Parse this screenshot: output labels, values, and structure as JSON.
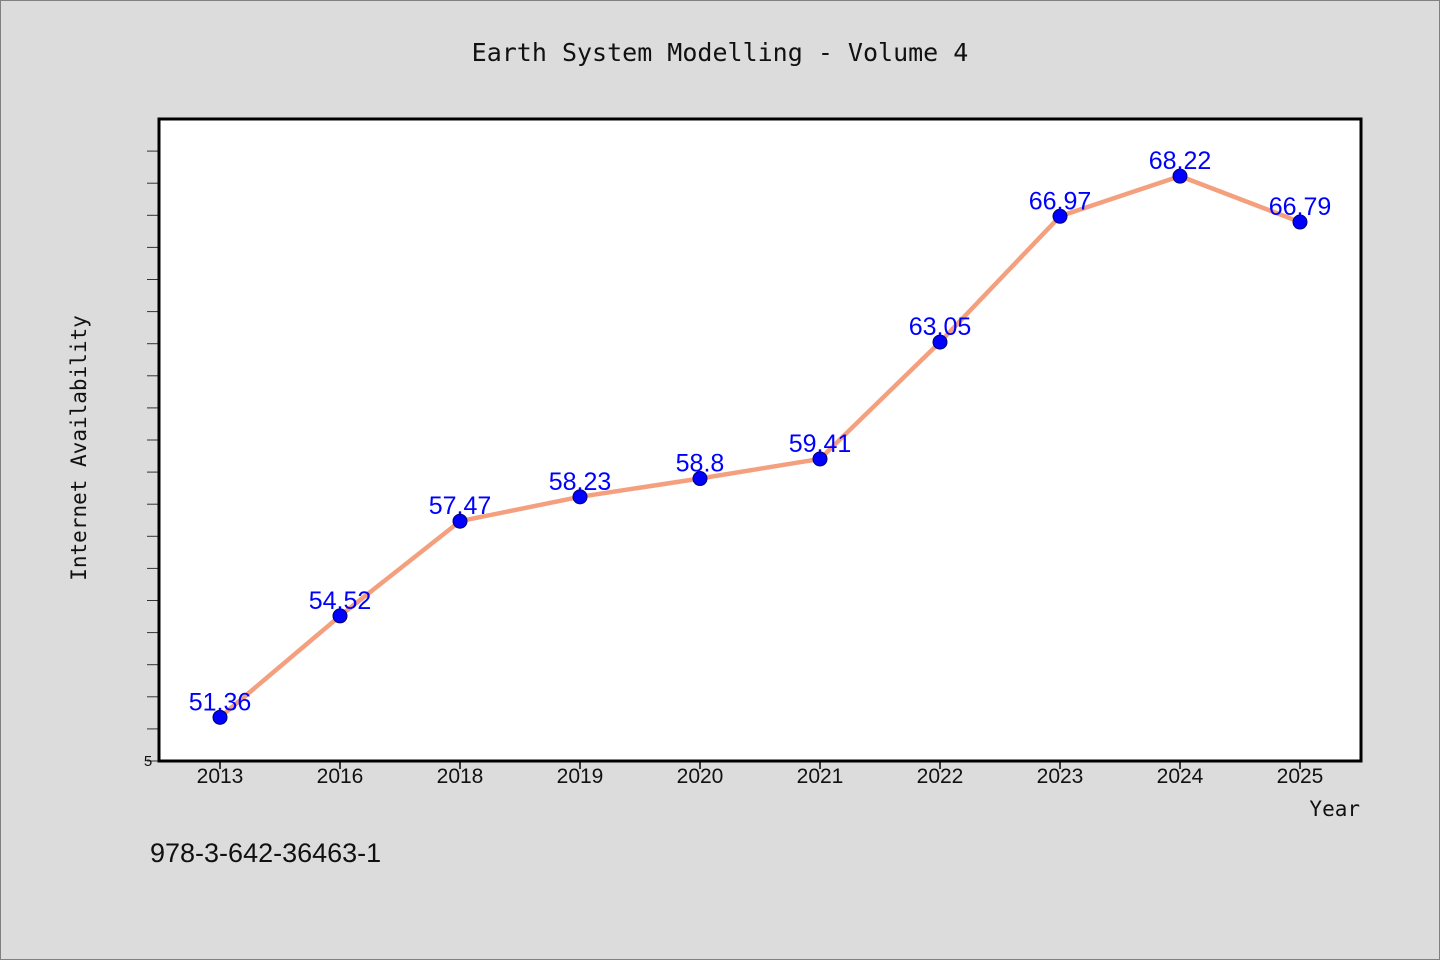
{
  "chart_data": {
    "type": "line",
    "title": "Earth System Modelling - Volume 4",
    "xlabel": "Year",
    "ylabel": "Internet Availability",
    "categories": [
      "2013",
      "2016",
      "2018",
      "2019",
      "2020",
      "2021",
      "2022",
      "2023",
      "2024",
      "2025"
    ],
    "series": [
      {
        "values": [
          51.36,
          54.52,
          57.47,
          58.23,
          58.8,
          59.41,
          63.05,
          66.97,
          68.22,
          66.79
        ]
      }
    ],
    "data_labels": [
      "51.36",
      "54.52",
      "57.47",
      "58.23",
      "58.8",
      "59.41",
      "63.05",
      "66.97",
      "68.22",
      "66.79"
    ],
    "y_tick_label": "5",
    "ylim": [
      50,
      70
    ],
    "grid": false,
    "legend": "none",
    "colors": {
      "line": "#f4a07e",
      "marker": "#0000ff",
      "marker_edge": "#00006a",
      "data_label": "#0000ff",
      "plot_background": "#ffffff",
      "page_background": "#dcdcdc"
    }
  },
  "footer": {
    "isbn": "978-3-642-36463-1"
  }
}
